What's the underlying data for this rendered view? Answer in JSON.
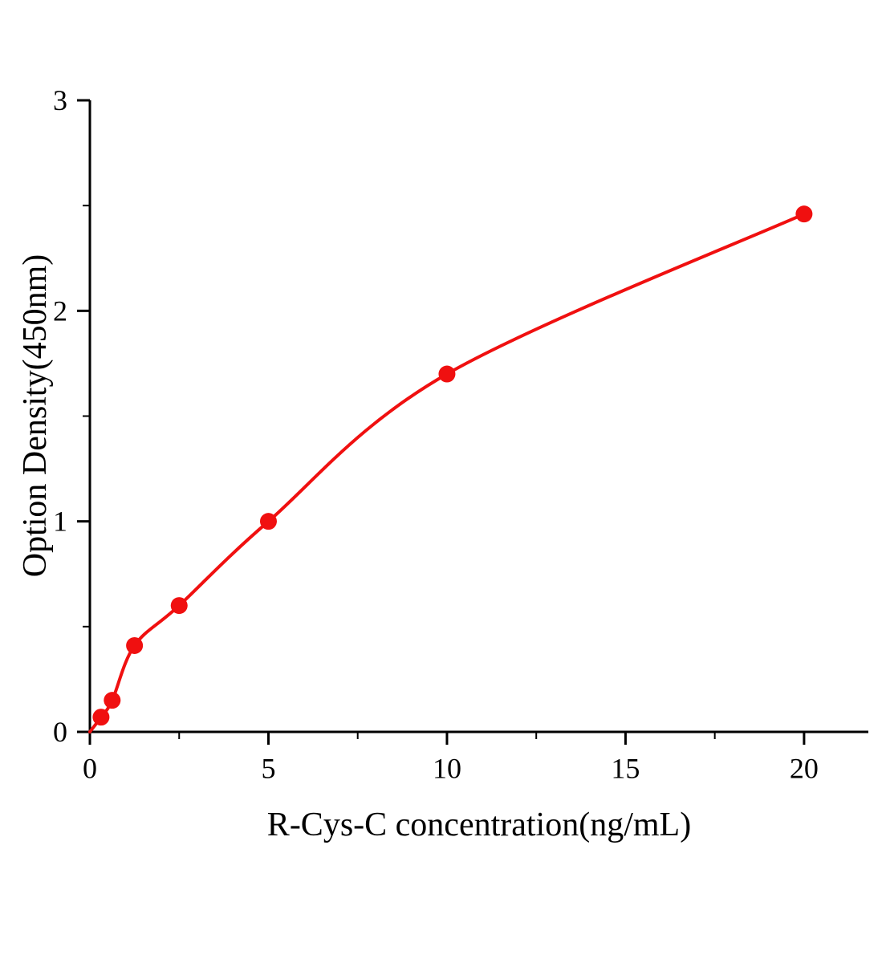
{
  "figure": {
    "background": "#ffffff"
  },
  "chart_data": {
    "type": "scatter",
    "title": "",
    "xlabel": "R-Cys-C concentration(ng/mL)",
    "ylabel": "Option Density(450nm)",
    "x": [
      0.3125,
      0.625,
      1.25,
      2.5,
      5,
      10,
      20
    ],
    "y": [
      0.07,
      0.15,
      0.41,
      0.6,
      1.0,
      1.7,
      2.46
    ],
    "fit_curve": {
      "type": "smooth",
      "start": [
        0,
        0
      ],
      "color": "#f01010",
      "width": 4
    },
    "marker": {
      "color": "#f01010",
      "radius": 10.5
    },
    "xlim": [
      0,
      21.8
    ],
    "ylim": [
      0,
      3
    ],
    "x_ticks": [
      0,
      5,
      10,
      15,
      20
    ],
    "x_minor_ticks": [
      2.5,
      7.5,
      12.5,
      17.5
    ],
    "y_ticks": [
      0,
      1,
      2,
      3
    ],
    "y_minor_ticks": [
      0.5,
      1.5,
      2.5
    ],
    "axis_color": "#000000",
    "tick_label_color": "#000000",
    "tick_font_size": 36,
    "legend": null,
    "grid": false
  }
}
